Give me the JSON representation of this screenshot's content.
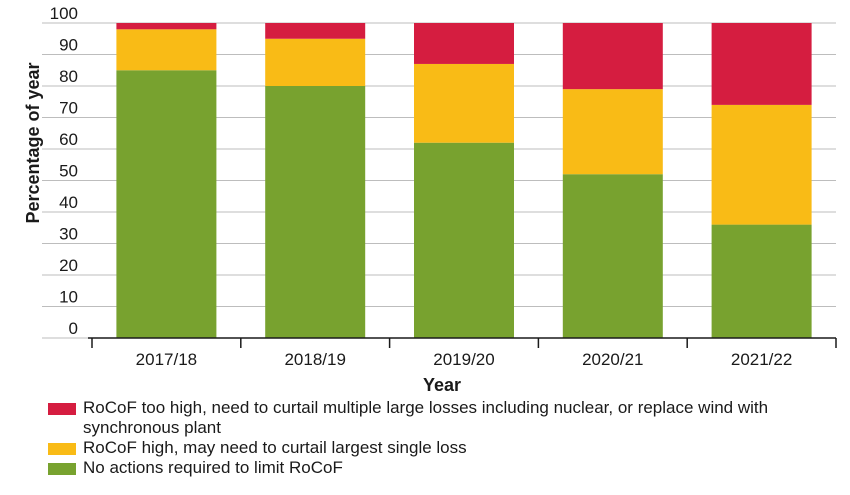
{
  "chart_data": {
    "type": "bar",
    "stacked": true,
    "categories": [
      "2017/18",
      "2018/19",
      "2019/20",
      "2020/21",
      "2021/22"
    ],
    "series": [
      {
        "name": "No actions required to limit RoCoF",
        "color": "#78a22f",
        "values": [
          85,
          80,
          62,
          52,
          36
        ]
      },
      {
        "name": "RoCoF high, may need to curtail largest single loss",
        "color": "#f9bb16",
        "values": [
          13,
          15,
          25,
          27,
          38
        ]
      },
      {
        "name": "RoCoF too high, need to curtail multiple large losses including nuclear, or replace wind with synchronous plant",
        "color": "#d51d40",
        "values": [
          2,
          5,
          13,
          21,
          26
        ]
      }
    ],
    "xlabel": "Year",
    "ylabel": "Percentage of year",
    "ylim": [
      0,
      100
    ],
    "yticks": [
      0,
      10,
      20,
      30,
      40,
      50,
      60,
      70,
      80,
      90,
      100
    ],
    "grid": true,
    "legend_position": "bottom"
  },
  "legend": [
    {
      "label": "RoCoF too high, need to curtail multiple large losses including nuclear, or replace wind with synchronous plant",
      "color": "#d51d40"
    },
    {
      "label": "RoCoF high, may need to curtail largest single loss",
      "color": "#f9bb16"
    },
    {
      "label": "No actions required to limit RoCoF",
      "color": "#78a22f"
    }
  ]
}
